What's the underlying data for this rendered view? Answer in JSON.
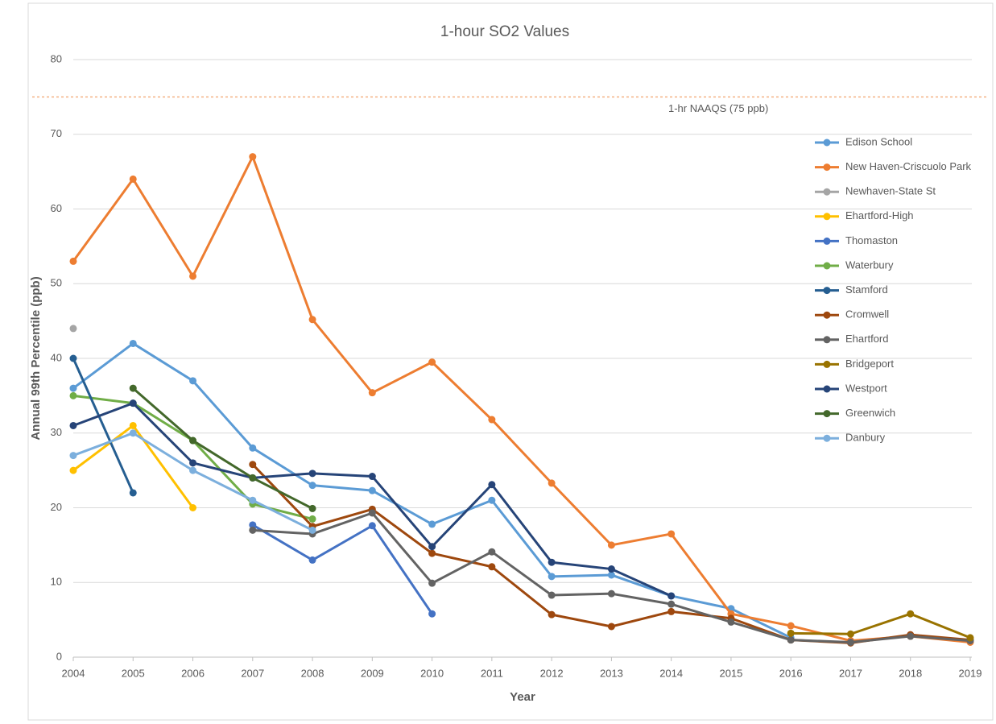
{
  "chart_data": {
    "type": "line",
    "title": "1-hour SO2 Values",
    "x_label": "Year",
    "y_label": "Annual 99th Percentile (ppb)",
    "categories": [
      "2004",
      "2005",
      "2006",
      "2007",
      "2008",
      "2009",
      "2010",
      "2011",
      "2012",
      "2013",
      "2014",
      "2015",
      "2016",
      "2017",
      "2018",
      "2019"
    ],
    "ylim": [
      0,
      80
    ],
    "yticks": [
      0,
      10,
      20,
      30,
      40,
      50,
      60,
      70,
      80
    ],
    "grid": true,
    "reference_line": {
      "value": 75,
      "label": "1-hr NAAQS (75 ppb)",
      "color": "#f4b183"
    },
    "legend": "right",
    "series": [
      {
        "name": "Edison School",
        "color": "#5b9bd5",
        "values": [
          36,
          42,
          37,
          28,
          23,
          22.3,
          17.8,
          21,
          10.8,
          11,
          8.2,
          6.5,
          2.6,
          null,
          null,
          null
        ]
      },
      {
        "name": "New Haven-Criscuolo Park",
        "color": "#ed7d31",
        "values": [
          53,
          64,
          51,
          67,
          45.2,
          35.4,
          39.5,
          31.8,
          23.3,
          15,
          16.5,
          5.8,
          4.2,
          2.2,
          2.8,
          2.0
        ]
      },
      {
        "name": "Newhaven-State St",
        "color": "#a5a5a5",
        "values": [
          44,
          null,
          null,
          null,
          null,
          null,
          null,
          null,
          null,
          null,
          null,
          null,
          null,
          null,
          null,
          null
        ]
      },
      {
        "name": "Ehartford-High",
        "color": "#ffc000",
        "values": [
          25,
          31,
          20,
          null,
          null,
          null,
          null,
          null,
          null,
          null,
          null,
          null,
          null,
          null,
          null,
          null
        ]
      },
      {
        "name": "Thomaston",
        "color": "#4472c4",
        "values": [
          null,
          null,
          null,
          17.7,
          13,
          17.6,
          5.8,
          null,
          null,
          null,
          null,
          null,
          null,
          null,
          null,
          null
        ]
      },
      {
        "name": "Waterbury",
        "color": "#70ad47",
        "values": [
          35,
          34,
          29,
          20.5,
          18.5,
          null,
          null,
          null,
          null,
          null,
          null,
          null,
          null,
          null,
          null,
          null
        ]
      },
      {
        "name": "Stamford",
        "color": "#255e91",
        "values": [
          40,
          22,
          null,
          null,
          null,
          null,
          null,
          null,
          null,
          null,
          null,
          null,
          null,
          null,
          null,
          null
        ]
      },
      {
        "name": "Cromwell",
        "color": "#9e480e",
        "values": [
          null,
          null,
          null,
          25.8,
          17.5,
          19.8,
          13.9,
          12.1,
          5.7,
          4.1,
          6.1,
          5.2,
          2.3,
          1.9,
          3.0,
          2.3
        ]
      },
      {
        "name": "Ehartford",
        "color": "#636363",
        "values": [
          null,
          null,
          null,
          17,
          16.5,
          19.3,
          9.9,
          14.1,
          8.3,
          8.5,
          7.1,
          4.7,
          2.3,
          2.0,
          2.8,
          2.2
        ]
      },
      {
        "name": "Bridgeport",
        "color": "#997300",
        "values": [
          null,
          null,
          null,
          null,
          null,
          null,
          null,
          null,
          null,
          null,
          null,
          null,
          3.2,
          3.1,
          5.8,
          2.6
        ]
      },
      {
        "name": "Westport",
        "color": "#264478",
        "values": [
          31,
          34,
          26,
          24,
          24.6,
          24.2,
          14.8,
          23.1,
          12.7,
          11.8,
          8.2,
          null,
          null,
          null,
          null,
          null
        ]
      },
      {
        "name": "Greenwich",
        "color": "#43682b",
        "values": [
          null,
          36,
          29,
          24,
          19.9,
          null,
          null,
          null,
          null,
          null,
          null,
          null,
          null,
          null,
          null,
          null
        ]
      },
      {
        "name": "Danbury",
        "color": "#7cafdd",
        "values": [
          27,
          30,
          25,
          21,
          17,
          null,
          null,
          null,
          null,
          null,
          null,
          null,
          null,
          null,
          null,
          null
        ]
      }
    ]
  }
}
